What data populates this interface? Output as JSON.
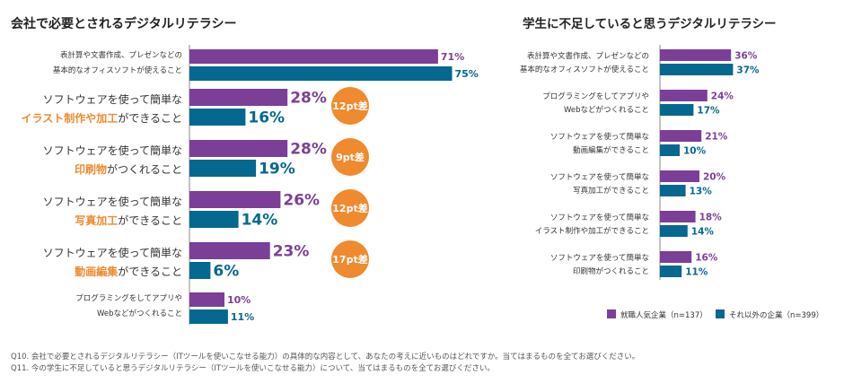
{
  "colors": {
    "purple": "#7b3f98",
    "blue": "#04688f",
    "orange": "#ef8a2e",
    "text": "#333333"
  },
  "legend": {
    "series1": "就職人気企業（n=137）",
    "series2": "それ以外の企業（n=399）"
  },
  "footnotes": [
    "Q10. 会社で必要とされるデジタルリテラシー（ITツールを使いこなせる能力）の具体的な内容として、あなたの考えに近いものはどれですか。当てはまるものを全てお選びください。",
    "Q11. 今の学生に不足していると思うデジタルリテラシー（ITツールを使いこなせる能力）について、当てはまるものを全てお選びください。"
  ],
  "chart_data": [
    {
      "type": "bar",
      "orientation": "horizontal",
      "title": "会社で必要とされるデジタルリテラシー",
      "categories": [
        [
          "表計算や文書作成、プレゼンなどの",
          "基本的なオフィスソフトが使えること"
        ],
        [
          "ソフトウェアを使って簡単な",
          "イラスト制作や加工ができること"
        ],
        [
          "ソフトウェアを使って簡単な",
          "印刷物がつくれること"
        ],
        [
          "ソフトウェアを使って簡単な",
          "写真加工ができること"
        ],
        [
          "ソフトウェアを使って簡単な",
          "動画編集ができること"
        ],
        [
          "プログラミングをしてアプリや",
          "Webなどがつくれること"
        ]
      ],
      "highlights": [
        null,
        "イラスト制作や加工",
        "印刷物",
        "写真加工",
        "動画編集",
        null
      ],
      "series": [
        {
          "name": "就職人気企業（n=137）",
          "values": [
            71,
            28,
            28,
            26,
            23,
            10
          ]
        },
        {
          "name": "それ以外の企業（n=399）",
          "values": [
            75,
            16,
            19,
            14,
            6,
            11
          ]
        }
      ],
      "value_labels": [
        [
          "71%",
          "28%",
          "28%",
          "26%",
          "23%",
          "10%"
        ],
        [
          "75%",
          "16%",
          "19%",
          "14%",
          "6%",
          "11%"
        ]
      ],
      "annotations": [
        "",
        "12pt差",
        "9pt差",
        "12pt差",
        "17pt差",
        ""
      ]
    },
    {
      "type": "bar",
      "orientation": "horizontal",
      "title": "学生に不足していると思うデジタルリテラシー",
      "categories": [
        [
          "表計算や文書作成、プレゼンなどの",
          "基本的なオフィスソフトが使えること"
        ],
        [
          "プログラミングをしてアプリや",
          "Webなどがつくれること"
        ],
        [
          "ソフトウェアを使って簡単な",
          "動画編集ができること"
        ],
        [
          "ソフトウェアを使って簡単な",
          "写真加工ができること"
        ],
        [
          "ソフトウェアを使って簡単な",
          "イラスト制作や加工ができること"
        ],
        [
          "ソフトウェアを使って簡単な",
          "印刷物がつくれること"
        ]
      ],
      "series": [
        {
          "name": "就職人気企業（n=137）",
          "values": [
            36,
            24,
            21,
            20,
            18,
            16
          ]
        },
        {
          "name": "それ以外の企業（n=399）",
          "values": [
            37,
            17,
            10,
            13,
            14,
            11
          ]
        }
      ],
      "value_labels": [
        [
          "36%",
          "24%",
          "21%",
          "20%",
          "18%",
          "16%"
        ],
        [
          "37%",
          "17%",
          "10%",
          "13%",
          "14%",
          "11%"
        ]
      ]
    }
  ]
}
